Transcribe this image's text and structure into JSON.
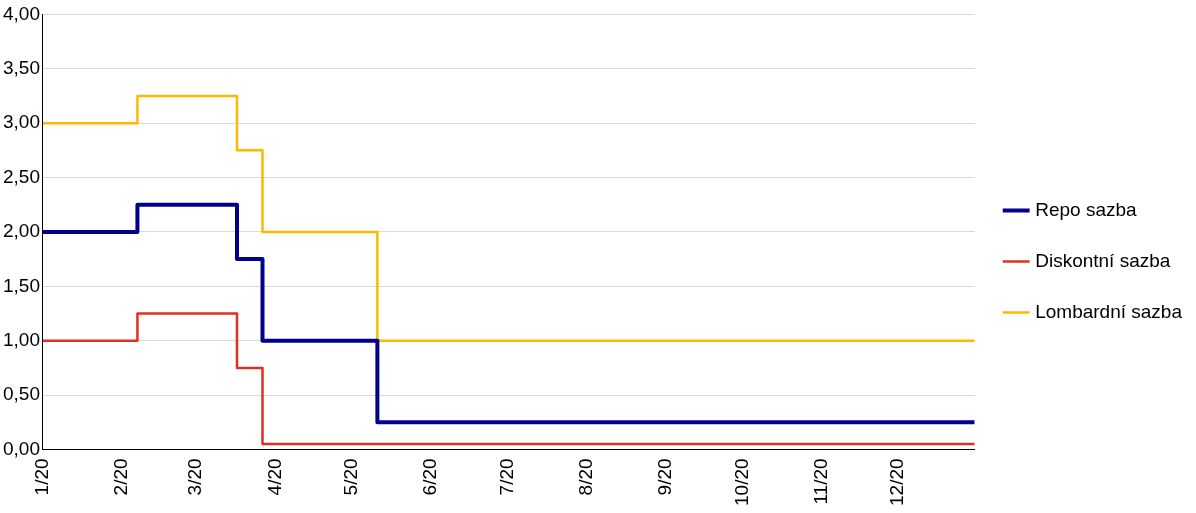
{
  "chart_data": {
    "type": "step",
    "series": [
      {
        "name": "Repo sazba",
        "color": "#00008b",
        "x": [
          "2020-01-01",
          "2020-02-07",
          "2020-03-17",
          "2020-03-27",
          "2020-05-11",
          "2020-12-31"
        ],
        "values": [
          2.0,
          2.25,
          1.75,
          1.0,
          0.25,
          0.25
        ]
      },
      {
        "name": "Diskontní sazba",
        "color": "#e03020",
        "x": [
          "2020-01-01",
          "2020-02-07",
          "2020-03-17",
          "2020-03-27",
          "2020-12-31"
        ],
        "values": [
          1.0,
          1.25,
          0.75,
          0.05,
          0.05
        ]
      },
      {
        "name": "Lombardní sazba",
        "color": "#ffb800",
        "x": [
          "2020-01-01",
          "2020-02-07",
          "2020-03-17",
          "2020-03-27",
          "2020-05-11",
          "2020-12-31"
        ],
        "values": [
          3.0,
          3.25,
          2.75,
          2.0,
          1.0,
          1.0
        ]
      }
    ],
    "xlim": [
      "2020-01-01",
      "2020-12-31"
    ],
    "xticks": [
      {
        "value": "2020-01-01",
        "label": "1/20"
      },
      {
        "value": "2020-02-01",
        "label": "2/20"
      },
      {
        "value": "2020-03-01",
        "label": "3/20"
      },
      {
        "value": "2020-04-01",
        "label": "4/20"
      },
      {
        "value": "2020-05-01",
        "label": "5/20"
      },
      {
        "value": "2020-06-01",
        "label": "6/20"
      },
      {
        "value": "2020-07-01",
        "label": "7/20"
      },
      {
        "value": "2020-08-01",
        "label": "8/20"
      },
      {
        "value": "2020-09-01",
        "label": "9/20"
      },
      {
        "value": "2020-10-01",
        "label": "10/20"
      },
      {
        "value": "2020-11-01",
        "label": "11/20"
      },
      {
        "value": "2020-12-01",
        "label": "12/20"
      }
    ],
    "ylim": [
      0,
      4
    ],
    "yticks": [
      {
        "value": 0,
        "label": "0,00"
      },
      {
        "value": 0.5,
        "label": "0,50"
      },
      {
        "value": 1,
        "label": "1,00"
      },
      {
        "value": 1.5,
        "label": "1,50"
      },
      {
        "value": 2,
        "label": "2,00"
      },
      {
        "value": 2.5,
        "label": "2,50"
      },
      {
        "value": 3,
        "label": "3,00"
      },
      {
        "value": 3.5,
        "label": "3,50"
      },
      {
        "value": 4,
        "label": "4,00"
      }
    ],
    "grid": "y",
    "legend": "right",
    "marker": "none",
    "line_style": "solid"
  }
}
